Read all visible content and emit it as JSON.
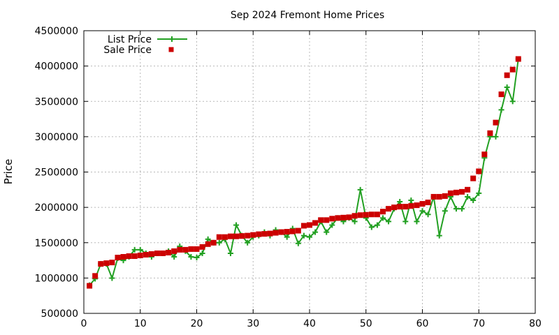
{
  "chart_data": {
    "type": "scatter",
    "title": "Sep 2024 Fremont Home Prices",
    "xlabel": "",
    "ylabel": "Price",
    "xlim": [
      0,
      80
    ],
    "ylim": [
      500000,
      4500000
    ],
    "x_ticks": [
      "0",
      "10",
      "20",
      "30",
      "40",
      "50",
      "60",
      "70",
      "80"
    ],
    "y_ticks": [
      "500000",
      "1000000",
      "1500000",
      "2000000",
      "2500000",
      "3000000",
      "3500000",
      "4000000",
      "4500000"
    ],
    "grid": true,
    "legend_position": "top-left",
    "colors": {
      "list": "#22a022",
      "sale": "#cc0000"
    },
    "series": [
      {
        "name": "List Price",
        "style": "line-with-plus",
        "x": [
          1,
          2,
          3,
          4,
          5,
          6,
          7,
          8,
          9,
          10,
          11,
          12,
          13,
          14,
          15,
          16,
          17,
          18,
          19,
          20,
          21,
          22,
          23,
          24,
          25,
          26,
          27,
          28,
          29,
          30,
          31,
          32,
          33,
          34,
          35,
          36,
          37,
          38,
          39,
          40,
          41,
          42,
          43,
          44,
          45,
          46,
          47,
          48,
          49,
          50,
          51,
          52,
          53,
          54,
          55,
          56,
          57,
          58,
          59,
          60,
          61,
          62,
          63,
          64,
          65,
          66,
          67,
          68,
          69,
          70,
          71,
          72,
          73,
          74,
          75,
          76,
          77
        ],
        "values": [
          899000,
          990000,
          1200000,
          1200000,
          999000,
          1280000,
          1250000,
          1300000,
          1400000,
          1400000,
          1350000,
          1300000,
          1350000,
          1350000,
          1380000,
          1300000,
          1450000,
          1380000,
          1300000,
          1290000,
          1350000,
          1550000,
          1500000,
          1500000,
          1550000,
          1350000,
          1750000,
          1600000,
          1500000,
          1580000,
          1600000,
          1650000,
          1600000,
          1680000,
          1650000,
          1580000,
          1700000,
          1490000,
          1600000,
          1580000,
          1650000,
          1800000,
          1650000,
          1750000,
          1850000,
          1800000,
          1850000,
          1800000,
          2250000,
          1850000,
          1720000,
          1750000,
          1850000,
          1800000,
          1980000,
          2080000,
          1800000,
          2100000,
          1800000,
          1950000,
          1900000,
          2150000,
          1600000,
          1950000,
          2150000,
          1980000,
          1980000,
          2150000,
          2100000,
          2200000,
          2700000,
          3000000,
          3000000,
          3380000,
          3700000,
          3500000,
          4100000
        ]
      },
      {
        "name": "Sale Price",
        "style": "square-points",
        "x": [
          1,
          2,
          3,
          4,
          5,
          6,
          7,
          8,
          9,
          10,
          11,
          12,
          13,
          14,
          15,
          16,
          17,
          18,
          19,
          20,
          21,
          22,
          23,
          24,
          25,
          26,
          27,
          28,
          29,
          30,
          31,
          32,
          33,
          34,
          35,
          36,
          37,
          38,
          39,
          40,
          41,
          42,
          43,
          44,
          45,
          46,
          47,
          48,
          49,
          50,
          51,
          52,
          53,
          54,
          55,
          56,
          57,
          58,
          59,
          60,
          61,
          62,
          63,
          64,
          65,
          66,
          67,
          68,
          69,
          70,
          71,
          72,
          73,
          74,
          75,
          76,
          77
        ],
        "values": [
          890000,
          1030000,
          1200000,
          1210000,
          1220000,
          1290000,
          1300000,
          1310000,
          1310000,
          1320000,
          1330000,
          1340000,
          1350000,
          1350000,
          1360000,
          1380000,
          1400000,
          1400000,
          1410000,
          1410000,
          1440000,
          1480000,
          1500000,
          1580000,
          1580000,
          1590000,
          1590000,
          1595000,
          1600000,
          1610000,
          1620000,
          1625000,
          1630000,
          1640000,
          1650000,
          1655000,
          1660000,
          1670000,
          1740000,
          1750000,
          1780000,
          1820000,
          1820000,
          1840000,
          1850000,
          1855000,
          1860000,
          1880000,
          1890000,
          1895000,
          1900000,
          1900000,
          1940000,
          1980000,
          2000000,
          2010000,
          2010000,
          2020000,
          2030000,
          2050000,
          2070000,
          2150000,
          2150000,
          2160000,
          2200000,
          2210000,
          2220000,
          2250000,
          2410000,
          2510000,
          2750000,
          3050000,
          3200000,
          3600000,
          3870000,
          3950000,
          4100000
        ]
      }
    ]
  }
}
